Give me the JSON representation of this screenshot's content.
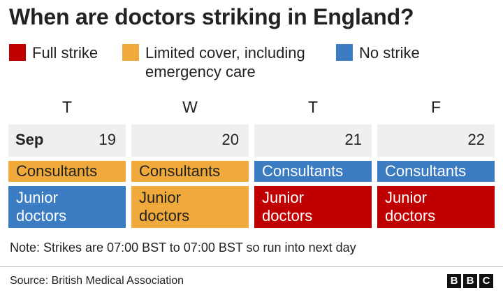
{
  "title": "When are doctors striking in England?",
  "colors": {
    "full_strike": "#c00000",
    "limited_cover": "#f0aa3b",
    "no_strike": "#3b7cc3",
    "date_bg": "#efefef"
  },
  "legend": [
    {
      "label_lines": [
        "Full strike"
      ],
      "color": "#c00000"
    },
    {
      "label_lines": [
        "Limited cover, including",
        "emergency care"
      ],
      "color": "#f0aa3b"
    },
    {
      "label_lines": [
        "No strike"
      ],
      "color": "#3b7cc3"
    }
  ],
  "month": "Sep",
  "days": [
    {
      "letter": "T",
      "date": "19",
      "consultants": "limited_cover",
      "junior": "no_strike"
    },
    {
      "letter": "W",
      "date": "20",
      "consultants": "limited_cover",
      "junior": "limited_cover"
    },
    {
      "letter": "T",
      "date": "21",
      "consultants": "no_strike",
      "junior": "full_strike"
    },
    {
      "letter": "F",
      "date": "22",
      "consultants": "no_strike",
      "junior": "full_strike"
    }
  ],
  "row_labels": {
    "consultants": "Consultants",
    "junior": [
      "Junior",
      "doctors"
    ]
  },
  "note": "Note: Strikes are 07:00 BST to 07:00 BST so run into next day",
  "source": "Source: British Medical Association",
  "logo": [
    "B",
    "B",
    "C"
  ]
}
